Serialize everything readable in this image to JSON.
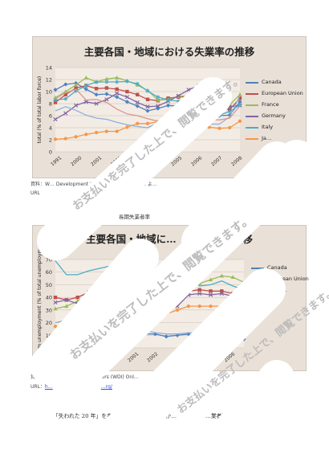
{
  "chart1": {
    "title": "主要各国・地域における失業率の推移",
    "ylabel": "total (% of total labor force)",
    "legend": [
      "Canada",
      "European Union",
      "France",
      "Germany",
      "Italy",
      "Ja…"
    ],
    "chart_data": {
      "type": "line",
      "x": [
        1991,
        1992,
        1993,
        1994,
        1995,
        1996,
        1997,
        1998,
        1999,
        2000,
        2001,
        2002,
        2003,
        2004,
        2005,
        2006,
        2007,
        2008,
        2009
      ],
      "ylim": [
        0,
        14
      ],
      "yticks": [
        0,
        2,
        4,
        6,
        8,
        10,
        12,
        14
      ],
      "xticks": [
        "1991",
        "2000",
        "2001",
        "2002",
        "2003",
        "2004",
        "2005",
        "2006",
        "2007",
        "2008"
      ],
      "series": [
        {
          "name": "Canada",
          "color": "#4f81bd",
          "marker": "diamond",
          "values": [
            10.3,
            11.2,
            11.4,
            10.4,
            9.5,
            9.6,
            9.1,
            8.3,
            7.6,
            6.8,
            7.2,
            7.7,
            7.6,
            7.2,
            6.8,
            6.3,
            6.0,
            6.1,
            8.3
          ]
        },
        {
          "name": "European Union",
          "color": "#c0504d",
          "marker": "square",
          "values": [
            8.2,
            9.5,
            10.6,
            11.0,
            10.5,
            10.6,
            10.4,
            10.0,
            9.5,
            8.7,
            8.5,
            8.9,
            9.1,
            9.2,
            9.0,
            8.2,
            7.2,
            7.0,
            8.9
          ]
        },
        {
          "name": "France",
          "color": "#9bbb59",
          "marker": "triangle",
          "values": [
            9.0,
            10.0,
            11.1,
            12.3,
            11.6,
            12.1,
            12.3,
            11.8,
            11.1,
            10.2,
            8.6,
            8.7,
            9.2,
            9.3,
            9.3,
            9.2,
            8.4,
            7.8,
            9.5
          ]
        },
        {
          "name": "Germany",
          "color": "#8064a2",
          "marker": "x",
          "values": [
            5.4,
            6.4,
            7.7,
            8.3,
            8.0,
            8.7,
            9.7,
            9.1,
            8.2,
            7.5,
            7.6,
            8.4,
            9.3,
            10.3,
            11.0,
            10.3,
            8.7,
            7.5,
            7.7
          ]
        },
        {
          "name": "Italy",
          "color": "#4bacc6",
          "marker": "star",
          "values": [
            8.6,
            8.8,
            10.1,
            11.0,
            11.6,
            11.6,
            11.6,
            11.7,
            11.3,
            10.1,
            9.1,
            8.6,
            8.4,
            8.0,
            7.7,
            6.8,
            6.1,
            6.7,
            7.8
          ]
        },
        {
          "name": "Ja…",
          "color": "#f79646",
          "marker": "circle",
          "values": [
            2.1,
            2.2,
            2.5,
            2.9,
            3.2,
            3.4,
            3.4,
            4.1,
            4.7,
            4.7,
            5.0,
            5.4,
            5.3,
            4.7,
            4.4,
            4.1,
            3.9,
            4.0,
            5.1
          ]
        },
        {
          "name": "",
          "color": "#8fb0d8",
          "marker": "none",
          "values": [
            6.8,
            7.5,
            6.9,
            6.1,
            5.6,
            5.4,
            4.9,
            4.5,
            4.2,
            4.0,
            4.8,
            5.8,
            6.0,
            5.5,
            5.1,
            4.6,
            4.6,
            5.8,
            9.3
          ]
        },
        {
          "name": "",
          "color": "#d99694",
          "marker": "none",
          "values": [
            8.8,
            9.8,
            10.4,
            8.6,
            8.7,
            8.2,
            7.1,
            6.3,
            6.0,
            5.5,
            5.1,
            5.2,
            5.0,
            4.8,
            4.8,
            5.4,
            5.3,
            5.6,
            7.6
          ]
        }
      ]
    }
  },
  "chart1_source": "資料：W… Development Indicators (WDI) Online よ…",
  "chart1_source2": "URL",
  "chart2_caption": "長期失業者率",
  "chart2": {
    "title": "主要各国・地域に…",
    "title_tail": "…移",
    "ylabel": "Long term unemployment (% of total unemployment)",
    "legend": [
      "Canada",
      "European Union",
      "Germ…",
      "Fra…"
    ],
    "chart_data": {
      "type": "line",
      "x": [
        1991,
        1992,
        1993,
        1994,
        1995,
        1996,
        1997,
        1998,
        1999,
        2000,
        2001,
        2002,
        2003,
        2004,
        2005,
        2006,
        2007,
        2008
      ],
      "ylim": [
        0,
        70
      ],
      "yticks": [
        0,
        10,
        20,
        30,
        40,
        50,
        60,
        70
      ],
      "xticks": [
        "1998",
        "1999",
        "2000",
        "2001",
        "2002",
        "2003",
        "2004",
        "2005",
        "2006"
      ],
      "series": [
        {
          "name": "Canada",
          "color": "#4f81bd",
          "marker": "diamond",
          "values": [
            7,
            9,
            11,
            13,
            12,
            12,
            11,
            12,
            11,
            11,
            9,
            10,
            11,
            10,
            10,
            9,
            7,
            7
          ]
        },
        {
          "name": "European Union",
          "color": "#c0504d",
          "marker": "square",
          "values": [
            40,
            38,
            40,
            44,
            48,
            48,
            49,
            47,
            46,
            47,
            45,
            46,
            45,
            46,
            45,
            45,
            43,
            38
          ]
        },
        {
          "name": "Germ…",
          "color": "#9bbb59",
          "marker": "triangle",
          "values": [
            31,
            33,
            37,
            42,
            48,
            48,
            49,
            52,
            51,
            51,
            50,
            48,
            50,
            51,
            54,
            57,
            56,
            52
          ]
        },
        {
          "name": "Fra…",
          "color": "#8064a2",
          "marker": "x",
          "values": [
            36,
            38,
            35,
            38,
            43,
            39,
            41,
            44,
            40,
            42,
            37,
            33,
            42,
            43,
            42,
            43,
            41,
            38
          ]
        },
        {
          "name": "",
          "color": "#4bacc6",
          "marker": "none",
          "values": [
            69,
            58,
            58,
            61,
            63,
            65,
            66,
            60,
            61,
            61,
            63,
            59,
            58,
            49,
            50,
            53,
            49,
            46
          ]
        },
        {
          "name": "",
          "color": "#f79646",
          "marker": "circle",
          "values": [
            17,
            15,
            17,
            18,
            18,
            20,
            22,
            27,
            27,
            26,
            27,
            30,
            33,
            33,
            33,
            33,
            32,
            33
          ]
        },
        {
          "name": "",
          "color": "#8fb0d8",
          "marker": "none",
          "values": [
            20,
            22,
            23,
            24,
            22,
            20,
            17,
            16,
            14,
            12,
            11,
            11,
            12,
            12,
            12,
            11,
            11,
            10
          ]
        }
      ]
    }
  },
  "chart2_source": "資料：… Development Indicators (WDI) Onl…",
  "chart2_url_prefix": "URL：",
  "chart2_url_a": "h…",
  "chart2_url_b": "…rg/",
  "body_text": "「失われた 20 年」を考えるために、1991 年か…",
  "body_text_tail": "…業者率の推移をグラフ",
  "watermark_text": "お支払いを完了した上で、閲覧できます。",
  "colors": {
    "chart_bg": "#e9e0d7",
    "plot_bg": "#f3ece5",
    "grid": "#c9bfb5"
  }
}
